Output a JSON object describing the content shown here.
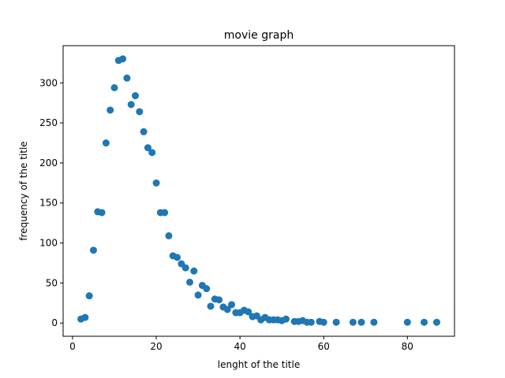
{
  "chart_data": {
    "type": "scatter",
    "title": "movie graph",
    "xlabel": "lenght of the title",
    "ylabel": "frequency of the title",
    "xlim": [
      -2.25,
      91.25
    ],
    "ylim": [
      -16.5,
      346.5
    ],
    "xticks": [
      0,
      20,
      40,
      60,
      80
    ],
    "yticks": [
      0,
      50,
      100,
      150,
      200,
      250,
      300
    ],
    "grid": false,
    "marker_color": "#1f77b4",
    "x": [
      2,
      3,
      4,
      5,
      6,
      7,
      8,
      9,
      10,
      11,
      12,
      13,
      14,
      15,
      16,
      17,
      18,
      19,
      20,
      21,
      22,
      23,
      24,
      25,
      26,
      27,
      28,
      29,
      30,
      31,
      32,
      33,
      34,
      35,
      36,
      37,
      38,
      39,
      40,
      41,
      42,
      43,
      44,
      45,
      46,
      47,
      48,
      49,
      50,
      51,
      53,
      54,
      55,
      56,
      57,
      59,
      60,
      63,
      67,
      69,
      72,
      80,
      84,
      87
    ],
    "y": [
      5,
      7,
      34,
      91,
      139,
      138,
      225,
      266,
      294,
      328,
      330,
      306,
      273,
      284,
      264,
      239,
      219,
      213,
      175,
      138,
      138,
      109,
      84,
      82,
      74,
      69,
      51,
      65,
      35,
      47,
      43,
      21,
      30,
      29,
      20,
      17,
      23,
      13,
      13,
      16,
      14,
      8,
      9,
      4,
      7,
      4,
      4,
      4,
      3,
      5,
      2,
      2,
      3,
      1,
      1,
      2,
      1,
      1,
      1,
      1,
      1,
      1,
      1,
      1
    ]
  }
}
